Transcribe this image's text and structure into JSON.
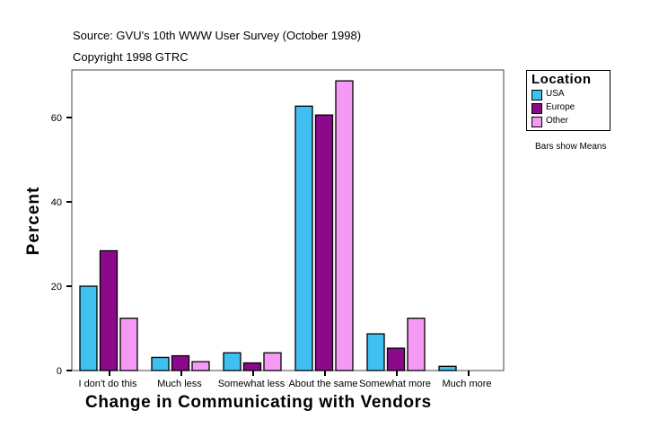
{
  "chart_data": {
    "type": "bar",
    "subtitle_lines": [
      "Source: GVU's 10th WWW User Survey (October 1998)",
      "Copyright 1998 GTRC"
    ],
    "xlabel": "Change in Communicating with Vendors",
    "ylabel": "Percent",
    "categories": [
      "I don't do this",
      "Much less",
      "Somewhat less",
      "About the same",
      "Somewhat more",
      "Much more"
    ],
    "ylim": [
      0,
      71
    ],
    "yticks": [
      0,
      20,
      40,
      60
    ],
    "grid": false,
    "legend": {
      "title": "Location",
      "placement": "right"
    },
    "note": "Bars show Means",
    "series": [
      {
        "name": "USA",
        "color": "#40C0F0",
        "values": [
          20.0,
          3.1,
          4.2,
          62.7,
          8.7,
          1.0
        ]
      },
      {
        "name": "Europe",
        "color": "#8B0A8B",
        "values": [
          28.4,
          3.5,
          1.8,
          60.6,
          5.3,
          0
        ]
      },
      {
        "name": "Other",
        "color": "#F49AF4",
        "values": [
          12.4,
          2.1,
          4.2,
          68.7,
          12.4,
          0
        ]
      }
    ]
  }
}
